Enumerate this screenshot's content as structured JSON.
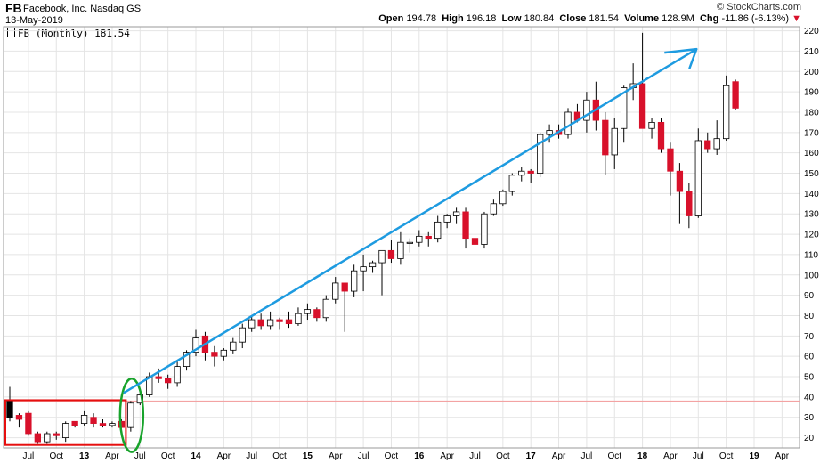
{
  "header": {
    "symbol": "FB",
    "company": "Facebook, Inc. Nasdaq GS",
    "date": "13-May-2019",
    "brand": "© StockCharts.com",
    "open_label": "Open",
    "open": "194.78",
    "high_label": "High",
    "high": "196.18",
    "low_label": "Low",
    "low": "180.84",
    "close_label": "Close",
    "close": "181.54",
    "volume_label": "Volume",
    "volume": "128.9M",
    "chg_label": "Chg",
    "chg": "-11.86 (-6.13%)",
    "legend": "FB (Monthly) 181.54"
  },
  "colors": {
    "up_fill": "#ffffff",
    "down_fill": "#d8112b",
    "candle_stroke": "#000000",
    "grid": "#e4e4e4",
    "support_line": "#f3a3a3",
    "arrow": "#1e9be0",
    "box": "#e60f0f",
    "ellipse": "#18a32b"
  },
  "chart_data": {
    "type": "candlestick",
    "ylim": [
      15,
      222
    ],
    "y_ticks": [
      20,
      30,
      40,
      50,
      60,
      70,
      80,
      90,
      100,
      110,
      120,
      130,
      140,
      150,
      160,
      170,
      180,
      190,
      200,
      210,
      220
    ],
    "x_tick_labels": [
      {
        "label": "Jul",
        "index": 2,
        "bold": false
      },
      {
        "label": "Oct",
        "index": 5,
        "bold": false
      },
      {
        "label": "13",
        "index": 8,
        "bold": true
      },
      {
        "label": "Apr",
        "index": 11,
        "bold": false
      },
      {
        "label": "Jul",
        "index": 14,
        "bold": false
      },
      {
        "label": "Oct",
        "index": 17,
        "bold": false
      },
      {
        "label": "14",
        "index": 20,
        "bold": true
      },
      {
        "label": "Apr",
        "index": 23,
        "bold": false
      },
      {
        "label": "Jul",
        "index": 26,
        "bold": false
      },
      {
        "label": "Oct",
        "index": 29,
        "bold": false
      },
      {
        "label": "15",
        "index": 32,
        "bold": true
      },
      {
        "label": "Apr",
        "index": 35,
        "bold": false
      },
      {
        "label": "Jul",
        "index": 38,
        "bold": false
      },
      {
        "label": "Oct",
        "index": 41,
        "bold": false
      },
      {
        "label": "16",
        "index": 44,
        "bold": true
      },
      {
        "label": "Apr",
        "index": 47,
        "bold": false
      },
      {
        "label": "Jul",
        "index": 50,
        "bold": false
      },
      {
        "label": "Oct",
        "index": 53,
        "bold": false
      },
      {
        "label": "17",
        "index": 56,
        "bold": true
      },
      {
        "label": "Apr",
        "index": 59,
        "bold": false
      },
      {
        "label": "Jul",
        "index": 62,
        "bold": false
      },
      {
        "label": "Oct",
        "index": 65,
        "bold": false
      },
      {
        "label": "18",
        "index": 68,
        "bold": true
      },
      {
        "label": "Apr",
        "index": 71,
        "bold": false
      },
      {
        "label": "Jul",
        "index": 74,
        "bold": false
      },
      {
        "label": "Oct",
        "index": 77,
        "bold": false
      },
      {
        "label": "19",
        "index": 80,
        "bold": true
      },
      {
        "label": "Apr",
        "index": 83,
        "bold": false
      }
    ],
    "support_level": 38,
    "candles": [
      {
        "o": 38,
        "h": 45,
        "l": 28,
        "c": 30
      },
      {
        "o": 31,
        "h": 32,
        "l": 25,
        "c": 29
      },
      {
        "o": 32,
        "h": 33,
        "l": 21,
        "c": 22
      },
      {
        "o": 22,
        "h": 23,
        "l": 17,
        "c": 18
      },
      {
        "o": 18,
        "h": 23,
        "l": 17,
        "c": 22
      },
      {
        "o": 22,
        "h": 23,
        "l": 19,
        "c": 21
      },
      {
        "o": 20,
        "h": 28,
        "l": 18,
        "c": 27
      },
      {
        "o": 28,
        "h": 28,
        "l": 25,
        "c": 26
      },
      {
        "o": 27,
        "h": 33,
        "l": 26,
        "c": 31
      },
      {
        "o": 30,
        "h": 32,
        "l": 25,
        "c": 27
      },
      {
        "o": 27,
        "h": 29,
        "l": 25,
        "c": 26
      },
      {
        "o": 26,
        "h": 28,
        "l": 25,
        "c": 27
      },
      {
        "o": 28,
        "h": 29,
        "l": 22,
        "c": 25
      },
      {
        "o": 25,
        "h": 38,
        "l": 23,
        "c": 37
      },
      {
        "o": 37,
        "h": 42,
        "l": 36,
        "c": 41
      },
      {
        "o": 41,
        "h": 52,
        "l": 40,
        "c": 50
      },
      {
        "o": 50,
        "h": 54,
        "l": 47,
        "c": 49
      },
      {
        "o": 49,
        "h": 51,
        "l": 44,
        "c": 47
      },
      {
        "o": 47,
        "h": 58,
        "l": 45,
        "c": 55
      },
      {
        "o": 55,
        "h": 63,
        "l": 53,
        "c": 62
      },
      {
        "o": 62,
        "h": 73,
        "l": 60,
        "c": 69
      },
      {
        "o": 70,
        "h": 72,
        "l": 58,
        "c": 62
      },
      {
        "o": 62,
        "h": 65,
        "l": 55,
        "c": 60
      },
      {
        "o": 60,
        "h": 64,
        "l": 58,
        "c": 63
      },
      {
        "o": 63,
        "h": 69,
        "l": 61,
        "c": 67
      },
      {
        "o": 67,
        "h": 76,
        "l": 64,
        "c": 74
      },
      {
        "o": 74,
        "h": 80,
        "l": 72,
        "c": 78
      },
      {
        "o": 78,
        "h": 81,
        "l": 73,
        "c": 75
      },
      {
        "o": 75,
        "h": 82,
        "l": 73,
        "c": 78
      },
      {
        "o": 78,
        "h": 79,
        "l": 73,
        "c": 77
      },
      {
        "o": 78,
        "h": 82,
        "l": 74,
        "c": 76
      },
      {
        "o": 76,
        "h": 84,
        "l": 75,
        "c": 81
      },
      {
        "o": 81,
        "h": 86,
        "l": 78,
        "c": 83
      },
      {
        "o": 83,
        "h": 84,
        "l": 77,
        "c": 79
      },
      {
        "o": 79,
        "h": 90,
        "l": 77,
        "c": 88
      },
      {
        "o": 88,
        "h": 99,
        "l": 86,
        "c": 96
      },
      {
        "o": 96,
        "h": 96,
        "l": 72,
        "c": 92
      },
      {
        "o": 92,
        "h": 105,
        "l": 89,
        "c": 102
      },
      {
        "o": 102,
        "h": 110,
        "l": 92,
        "c": 104
      },
      {
        "o": 104,
        "h": 107,
        "l": 101,
        "c": 106
      },
      {
        "o": 106,
        "h": 112,
        "l": 90,
        "c": 112
      },
      {
        "o": 112,
        "h": 117,
        "l": 106,
        "c": 108
      },
      {
        "o": 108,
        "h": 121,
        "l": 105,
        "c": 116
      },
      {
        "o": 116,
        "h": 118,
        "l": 111,
        "c": 116
      },
      {
        "o": 116,
        "h": 122,
        "l": 114,
        "c": 119
      },
      {
        "o": 119,
        "h": 121,
        "l": 114,
        "c": 118
      },
      {
        "o": 118,
        "h": 129,
        "l": 116,
        "c": 126
      },
      {
        "o": 126,
        "h": 130,
        "l": 123,
        "c": 129
      },
      {
        "o": 129,
        "h": 133,
        "l": 125,
        "c": 131
      },
      {
        "o": 131,
        "h": 133,
        "l": 113,
        "c": 118
      },
      {
        "o": 118,
        "h": 122,
        "l": 114,
        "c": 115
      },
      {
        "o": 115,
        "h": 131,
        "l": 113,
        "c": 130
      },
      {
        "o": 130,
        "h": 137,
        "l": 129,
        "c": 135
      },
      {
        "o": 135,
        "h": 142,
        "l": 134,
        "c": 141
      },
      {
        "o": 141,
        "h": 150,
        "l": 139,
        "c": 149
      },
      {
        "o": 149,
        "h": 153,
        "l": 146,
        "c": 151
      },
      {
        "o": 151,
        "h": 152,
        "l": 145,
        "c": 150
      },
      {
        "o": 150,
        "h": 170,
        "l": 148,
        "c": 169
      },
      {
        "o": 169,
        "h": 174,
        "l": 165,
        "c": 171
      },
      {
        "o": 171,
        "h": 174,
        "l": 167,
        "c": 169
      },
      {
        "o": 169,
        "h": 182,
        "l": 167,
        "c": 180
      },
      {
        "o": 180,
        "h": 184,
        "l": 175,
        "c": 176
      },
      {
        "o": 176,
        "h": 190,
        "l": 170,
        "c": 186
      },
      {
        "o": 186,
        "h": 195,
        "l": 171,
        "c": 176
      },
      {
        "o": 176,
        "h": 180,
        "l": 149,
        "c": 159
      },
      {
        "o": 159,
        "h": 177,
        "l": 152,
        "c": 172
      },
      {
        "o": 172,
        "h": 193,
        "l": 165,
        "c": 192
      },
      {
        "o": 192,
        "h": 204,
        "l": 186,
        "c": 194
      },
      {
        "o": 194,
        "h": 219,
        "l": 172,
        "c": 172
      },
      {
        "o": 172,
        "h": 177,
        "l": 167,
        "c": 175
      },
      {
        "o": 175,
        "h": 177,
        "l": 160,
        "c": 162
      },
      {
        "o": 162,
        "h": 165,
        "l": 139,
        "c": 151
      },
      {
        "o": 151,
        "h": 155,
        "l": 125,
        "c": 141
      },
      {
        "o": 141,
        "h": 145,
        "l": 123,
        "c": 129
      },
      {
        "o": 129,
        "h": 172,
        "l": 128,
        "c": 166
      },
      {
        "o": 166,
        "h": 170,
        "l": 160,
        "c": 162
      },
      {
        "o": 162,
        "h": 176,
        "l": 159,
        "c": 167
      },
      {
        "o": 167,
        "h": 198,
        "l": 166,
        "c": 193
      },
      {
        "o": 195,
        "h": 196,
        "l": 181,
        "c": 182
      }
    ]
  }
}
